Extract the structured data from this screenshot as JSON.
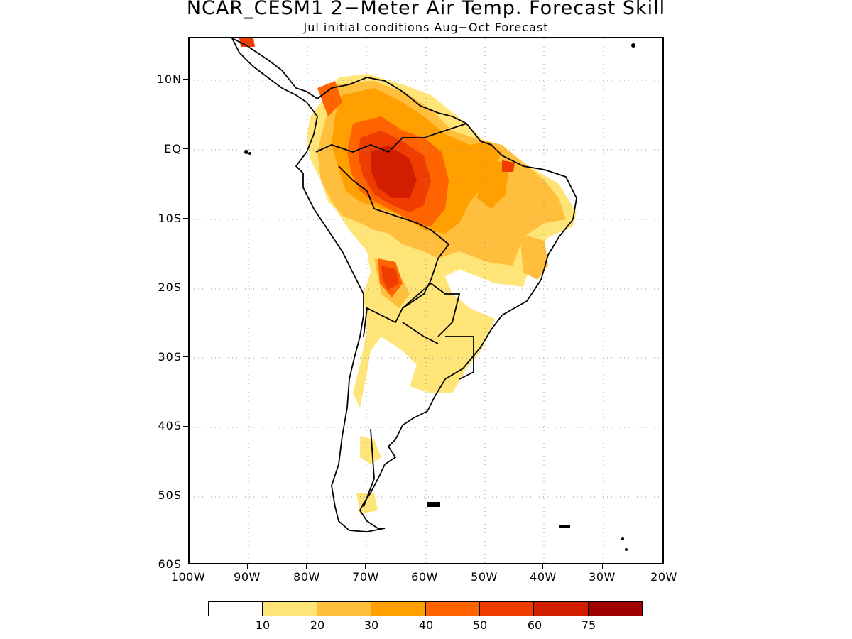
{
  "title": "NCAR_CESM1 2−Meter Air Temp. Forecast Skill",
  "subtitle": "Jul initial conditions  Aug−Oct Forecast",
  "map": {
    "region": "South America",
    "projection": "lat-lon",
    "lon_range": [
      -100,
      -20
    ],
    "lat_range": [
      -60,
      16
    ],
    "grid": "dotted",
    "lat_labels": [
      "10N",
      "EQ",
      "10S",
      "20S",
      "30S",
      "40S",
      "50S",
      "60S"
    ],
    "lon_labels": [
      "100W",
      "90W",
      "80W",
      "70W",
      "60W",
      "50W",
      "40W",
      "30W",
      "20W"
    ]
  },
  "colorbar": {
    "colors": [
      "#ffffff",
      "#ffe478",
      "#ffbe3c",
      "#ffa000",
      "#ff6400",
      "#f03c00",
      "#d21e00",
      "#a00000"
    ],
    "labels": [
      "10",
      "20",
      "30",
      "40",
      "50",
      "60",
      "75"
    ]
  }
}
